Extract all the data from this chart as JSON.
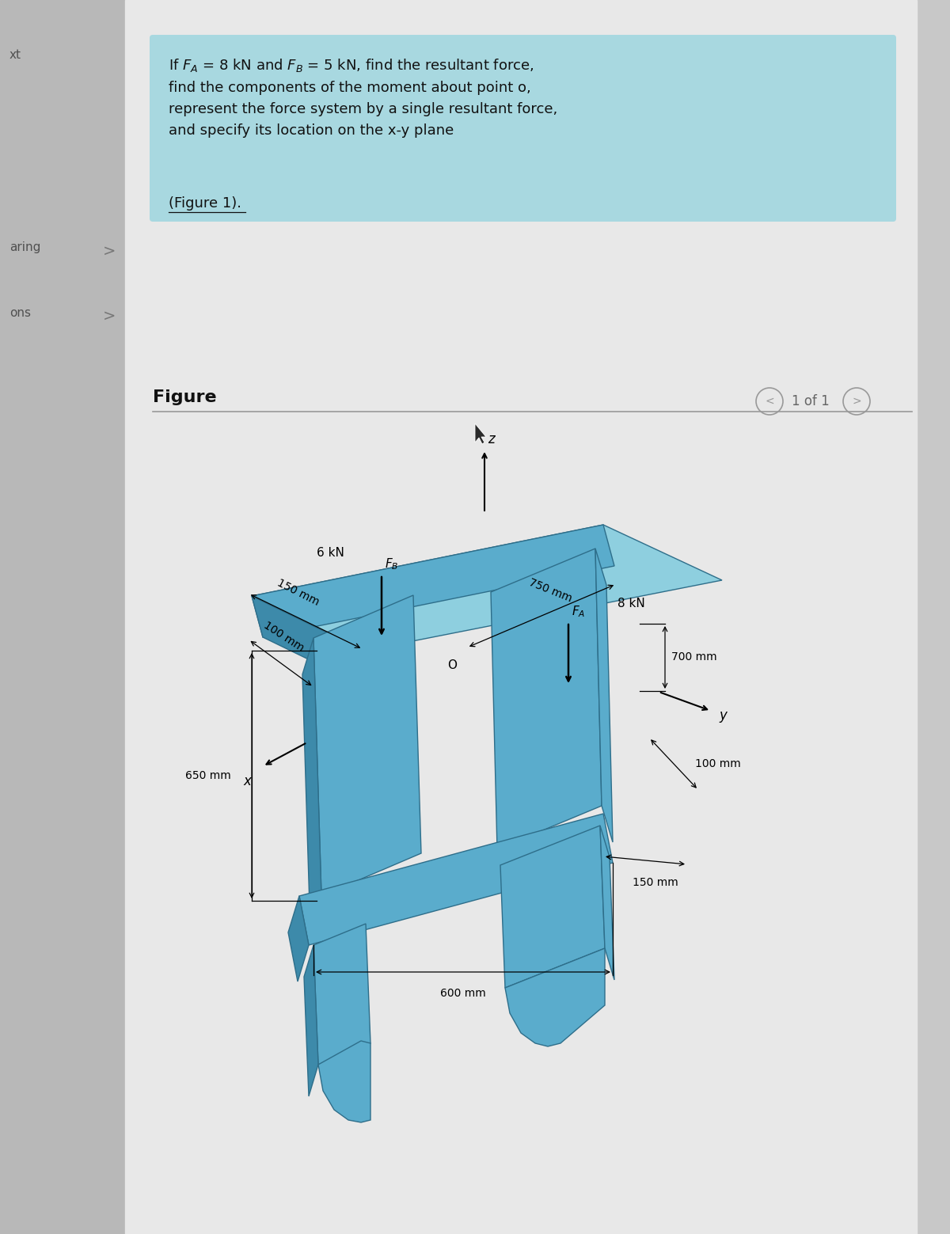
{
  "page_bg": "#d9d9d9",
  "sidebar_color": "#b8b8b8",
  "right_strip_color": "#c8c8c8",
  "main_area_color": "#e8e8e8",
  "text_box_color": "#a8d8e0",
  "sidebar_labels": [
    "xt",
    "aring",
    "ons"
  ],
  "figure_link_text": "(Figure 1).",
  "figure_label": "Figure",
  "nav_text": "1 of 1",
  "struct_top": "#8ecfdf",
  "struct_mid": "#5aaccc",
  "struct_dark": "#3d8aaa",
  "struct_darker": "#2e6e8a",
  "ann_150mm_left": "150 mm",
  "ann_100mm_left": "100 mm",
  "ann_6kN": "6 kN",
  "ann_FB": "$F_B$",
  "ann_750mm": "750 mm",
  "ann_8kN": "8 kN",
  "ann_FA": "$F_A$",
  "ann_700mm": "700 mm",
  "ann_650mm": "650 mm",
  "ann_600mm": "600 mm",
  "ann_100mm_right": "100 mm",
  "ann_150mm_right": "150 mm",
  "ann_x": "x",
  "ann_y": "y",
  "ann_z": "z",
  "ann_O": "O"
}
